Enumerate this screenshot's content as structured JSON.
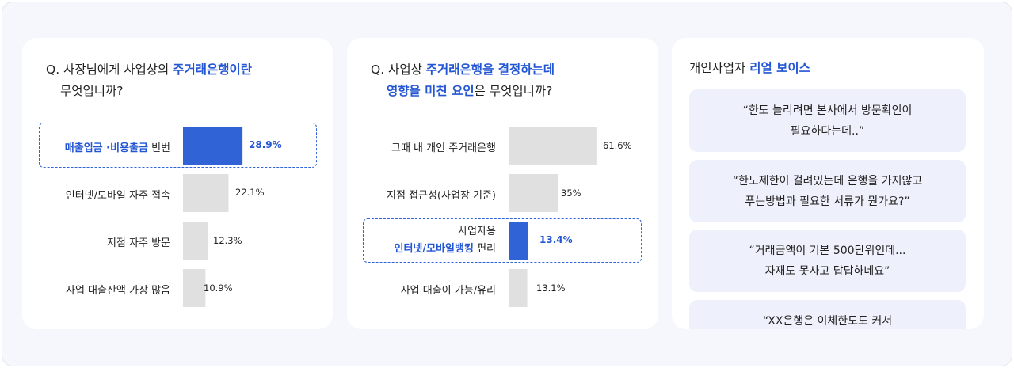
{
  "colors": {
    "accent": "#2f63d6",
    "accent_text": "#2356d4",
    "bar": "#e0e0e0",
    "quote_bg": "#eef1fb"
  },
  "survey1": {
    "question_pre": "Q. 사장님에게 사업상의 ",
    "question_emph": "주거래은행이란",
    "question_line2": "무엇입니까?"
  },
  "survey2": {
    "question_pre": "Q. 사업상 ",
    "question_emph": "주거래은행을 결정하는데",
    "question_line2_emph": "영향을 미친 요인",
    "question_line2_post": "은 무엇입니까?"
  },
  "chart_data": [
    {
      "type": "bar",
      "orientation": "horizontal",
      "categories": [
        "매출입금 ·비용출금 빈번",
        "인터넷/모바일 자주 접속",
        "지점 자주 방문",
        "사업 대출잔액 가장 많음"
      ],
      "values": [
        28.9,
        22.1,
        12.3,
        10.9
      ],
      "value_labels": [
        "28.9%",
        "22.1%",
        "12.3%",
        "10.9%"
      ],
      "highlight_index": 0
    },
    {
      "type": "bar",
      "orientation": "horizontal",
      "categories": [
        "그때 내 개인 주거래은행",
        "지점 접근성(사업장 기준)",
        "사업자용 인터넷/모바일뱅킹 편리",
        "사업 대출이 가능/유리"
      ],
      "values": [
        61.6,
        35,
        13.4,
        13.1
      ],
      "value_labels": [
        "61.6%",
        "35%",
        "13.4%",
        "13.1%"
      ],
      "highlight_index": 2
    }
  ],
  "label_parts": {
    "c1_0_emph": "매출입금 ·비용출금",
    "c1_0_rest": " 빈번",
    "c2_2_line1": "사업자용",
    "c2_2_emph": "인터넷/모바일뱅킹",
    "c2_2_rest": " 편리"
  },
  "voices": {
    "title_pre": "개인사업자 ",
    "title_emph": "리얼 보이스",
    "quotes": [
      "“한도 늘리려면 본사에서 방문확인이\n필요하다는데..”",
      "“한도제한이 걸려있는데 은행을 가지않고\n푸는방법과 필요한 서류가 뭔가요?”",
      "“거래금액이 기본 500단위인데...\n자재도 못사고 답답하네요”",
      "“XX은행은 이체한도도 커서"
    ]
  }
}
